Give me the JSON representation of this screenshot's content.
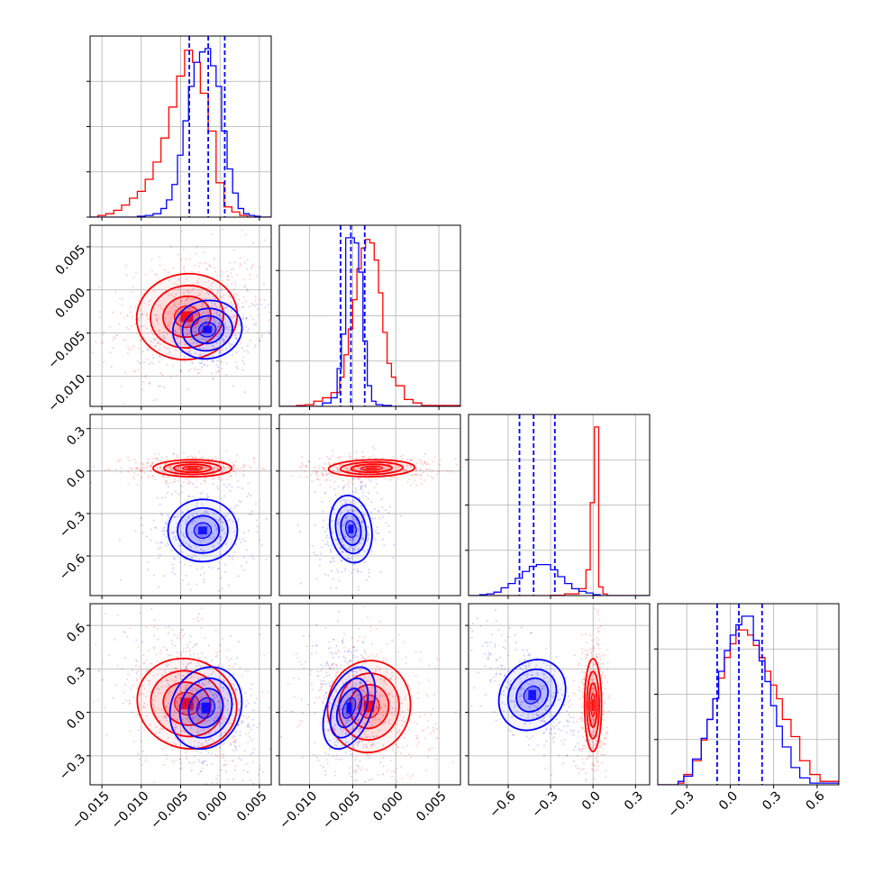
{
  "chart_data": {
    "type": "corner",
    "title": "",
    "grid": true,
    "colors": {
      "blue": "#0000ff",
      "red": "#ff0000"
    },
    "series": [
      {
        "color": "blue"
      },
      {
        "color": "red"
      }
    ],
    "parameters": [
      {
        "range": [
          -0.0165,
          0.0065
        ],
        "ticks": [
          -0.015,
          -0.01,
          -0.005,
          0.0,
          0.005
        ],
        "tick_labels": [
          "−0.015",
          "−0.010",
          "−0.005",
          "0.000",
          "0.005"
        ]
      },
      {
        "range": [
          -0.0135,
          0.0075
        ],
        "ticks": [
          -0.01,
          -0.005,
          0.0,
          0.005
        ],
        "tick_labels": [
          "−0.010",
          "−0.005",
          "0.000",
          "0.005"
        ]
      },
      {
        "range": [
          -0.88,
          0.4
        ],
        "ticks": [
          -0.6,
          -0.3,
          0.0,
          0.3
        ],
        "tick_labels": [
          "−0.6",
          "−0.3",
          "0.0",
          "0.3"
        ]
      },
      {
        "range": [
          -0.5,
          0.75
        ],
        "ticks": [
          -0.3,
          0.0,
          0.3,
          0.6
        ],
        "tick_labels": [
          "−0.3",
          "0.0",
          "0.3",
          "0.6"
        ]
      }
    ],
    "marginals": [
      {
        "blue_quantiles": [
          -0.0039,
          -0.0015,
          0.0006
        ],
        "blue": [
          {
            "x": [
              -0.0165,
              -0.0115,
              -0.0105,
              -0.0095,
              -0.0085,
              -0.0075,
              -0.0068,
              -0.0061,
              -0.0054,
              -0.0047,
              -0.004,
              -0.0033,
              -0.0026,
              -0.0019,
              -0.0012,
              -0.0005,
              0.0002,
              0.0009,
              0.0016,
              0.0023,
              0.003,
              0.0037,
              0.0044,
              0.0051,
              0.0065
            ],
            "h": [
              0,
              0,
              0.005,
              0.01,
              0.02,
              0.05,
              0.1,
              0.19,
              0.36,
              0.56,
              0.76,
              0.9,
              0.96,
              0.98,
              0.88,
              0.76,
              0.5,
              0.28,
              0.14,
              0.05,
              0.02,
              0.01,
              0.005,
              0,
              0
            ]
          }
        ],
        "red": [
          {
            "x": [
              -0.0165,
              -0.0155,
              -0.0145,
              -0.0135,
              -0.0125,
              -0.0115,
              -0.0105,
              -0.0095,
              -0.0085,
              -0.0075,
              -0.0065,
              -0.0055,
              -0.0045,
              -0.0035,
              -0.0025,
              -0.0015,
              -0.0005,
              0.0005,
              0.0015,
              0.0025,
              0.0035,
              0.0065
            ],
            "h": [
              0,
              0.01,
              0.02,
              0.04,
              0.07,
              0.11,
              0.15,
              0.22,
              0.32,
              0.46,
              0.64,
              0.82,
              0.97,
              0.9,
              0.72,
              0.5,
              0.2,
              0.06,
              0.03,
              0.01,
              0,
              0
            ]
          }
        ]
      },
      {
        "blue_quantiles": [
          -0.0064,
          -0.0052,
          -0.0036
        ],
        "blue": [
          {
            "x": [
              -0.0135,
              -0.0095,
              -0.0085,
              -0.0075,
              -0.0068,
              -0.0063,
              -0.0058,
              -0.0053,
              -0.0048,
              -0.0043,
              -0.0038,
              -0.0033,
              -0.0028,
              -0.0023,
              -0.0015,
              -0.0005,
              0.0005,
              0.0075
            ],
            "h": [
              0,
              0,
              0.02,
              0.05,
              0.22,
              0.42,
              0.98,
              0.98,
              0.95,
              0.78,
              0.38,
              0.12,
              0.03,
              0.01,
              0.005,
              0,
              0,
              0
            ]
          }
        ],
        "red": [
          {
            "x": [
              -0.0135,
              -0.0115,
              -0.0105,
              -0.0095,
              -0.0085,
              -0.0075,
              -0.0065,
              -0.006,
              -0.0055,
              -0.005,
              -0.0045,
              -0.004,
              -0.0035,
              -0.003,
              -0.0025,
              -0.002,
              -0.0015,
              -0.001,
              -0.0005,
              0.0,
              0.001,
              0.002,
              0.003,
              0.0075
            ],
            "h": [
              0,
              0.005,
              0.01,
              0.03,
              0.05,
              0.08,
              0.17,
              0.3,
              0.45,
              0.62,
              0.8,
              0.92,
              0.97,
              0.95,
              0.85,
              0.66,
              0.43,
              0.25,
              0.17,
              0.12,
              0.04,
              0.02,
              0.005,
              0
            ]
          }
        ]
      },
      {
        "blue_quantiles": [
          -0.52,
          -0.42,
          -0.27
        ],
        "blue": [
          {
            "x": [
              -0.88,
              -0.8,
              -0.75,
              -0.7,
              -0.65,
              -0.6,
              -0.55,
              -0.5,
              -0.45,
              -0.4,
              -0.35,
              -0.3,
              -0.25,
              -0.2,
              -0.15,
              -0.1,
              -0.05,
              0.0,
              0.05,
              0.4
            ],
            "h": [
              0,
              0.005,
              0.01,
              0.02,
              0.045,
              0.07,
              0.1,
              0.14,
              0.17,
              0.18,
              0.18,
              0.15,
              0.11,
              0.07,
              0.04,
              0.025,
              0.015,
              0.005,
              0,
              0
            ]
          }
        ],
        "red": [
          {
            "x": [
              -0.88,
              -0.35,
              -0.3,
              -0.2,
              -0.1,
              -0.05,
              -0.02,
              0.01,
              0.04,
              0.07,
              0.1,
              0.15,
              0.4
            ],
            "h": [
              0,
              0,
              0.002,
              0.01,
              0.04,
              0.15,
              0.54,
              0.98,
              0.05,
              0.01,
              0,
              0,
              0
            ]
          }
        ]
      },
      {
        "blue_quantiles": [
          -0.09,
          0.06,
          0.22
        ],
        "blue": [
          {
            "x": [
              -0.5,
              -0.42,
              -0.36,
              -0.32,
              -0.26,
              -0.2,
              -0.16,
              -0.12,
              -0.08,
              -0.04,
              0.0,
              0.04,
              0.08,
              0.12,
              0.16,
              0.2,
              0.24,
              0.28,
              0.32,
              0.36,
              0.42,
              0.48,
              0.55,
              0.75
            ],
            "h": [
              0,
              0,
              0.02,
              0.05,
              0.15,
              0.27,
              0.38,
              0.5,
              0.66,
              0.78,
              0.87,
              0.93,
              0.98,
              0.98,
              0.84,
              0.72,
              0.6,
              0.46,
              0.34,
              0.22,
              0.1,
              0.04,
              0.01,
              0
            ]
          }
        ],
        "red": [
          {
            "x": [
              -0.5,
              -0.42,
              -0.36,
              -0.32,
              -0.26,
              -0.2,
              -0.16,
              -0.12,
              -0.08,
              -0.04,
              0.0,
              0.04,
              0.08,
              0.12,
              0.16,
              0.2,
              0.24,
              0.28,
              0.32,
              0.36,
              0.42,
              0.48,
              0.55,
              0.62,
              0.75
            ],
            "h": [
              0,
              0,
              0.01,
              0.06,
              0.14,
              0.26,
              0.38,
              0.5,
              0.62,
              0.74,
              0.82,
              0.9,
              0.9,
              0.87,
              0.81,
              0.74,
              0.66,
              0.58,
              0.5,
              0.38,
              0.28,
              0.14,
              0.06,
              0.02,
              0
            ]
          }
        ]
      }
    ],
    "joint": [
      {
        "i": 1,
        "j": 0,
        "blue": {
          "center": [
            -0.0016,
            -0.0046
          ],
          "sigma": [
            0.0022,
            0.0017
          ],
          "rho": 0.2,
          "n": 380
        },
        "red": {
          "center": [
            -0.0042,
            -0.0031
          ],
          "sigma": [
            0.0032,
            0.0025
          ],
          "rho": 0.15,
          "n": 520
        }
      },
      {
        "i": 2,
        "j": 0,
        "blue": {
          "center": [
            -0.0022,
            -0.42
          ],
          "sigma": [
            0.0022,
            0.11
          ],
          "rho": 0.05,
          "n": 380
        },
        "red": {
          "center": [
            -0.0035,
            0.02
          ],
          "sigma": [
            0.0025,
            0.03
          ],
          "rho": 0.0,
          "n": 450
        }
      },
      {
        "i": 2,
        "j": 1,
        "blue": {
          "center": [
            -0.0052,
            -0.41
          ],
          "sigma": [
            0.0012,
            0.12
          ],
          "rho": 0.1,
          "n": 360
        },
        "red": {
          "center": [
            -0.0028,
            0.02
          ],
          "sigma": [
            0.0025,
            0.03
          ],
          "rho": 0.1,
          "n": 450
        }
      },
      {
        "i": 3,
        "j": 0,
        "blue": {
          "center": [
            -0.0018,
            0.03
          ],
          "sigma": [
            0.0022,
            0.15
          ],
          "rho": -0.35,
          "n": 380
        },
        "red": {
          "center": [
            -0.0042,
            0.06
          ],
          "sigma": [
            0.0032,
            0.16
          ],
          "rho": -0.4,
          "n": 520
        }
      },
      {
        "i": 3,
        "j": 1,
        "blue": {
          "center": [
            -0.0054,
            0.03
          ],
          "sigma": [
            0.0013,
            0.15
          ],
          "rho": -0.2,
          "n": 360
        },
        "red": {
          "center": [
            -0.0031,
            0.04
          ],
          "sigma": [
            0.0024,
            0.16
          ],
          "rho": -0.15,
          "n": 480
        }
      },
      {
        "i": 3,
        "j": 2,
        "blue": {
          "center": [
            -0.43,
            0.12
          ],
          "sigma": [
            0.11,
            0.14
          ],
          "rho": -0.55,
          "n": 400
        },
        "red": {
          "center": [
            0.0,
            0.05
          ],
          "sigma": [
            0.03,
            0.16
          ],
          "rho": 0.0,
          "n": 450
        }
      }
    ]
  }
}
